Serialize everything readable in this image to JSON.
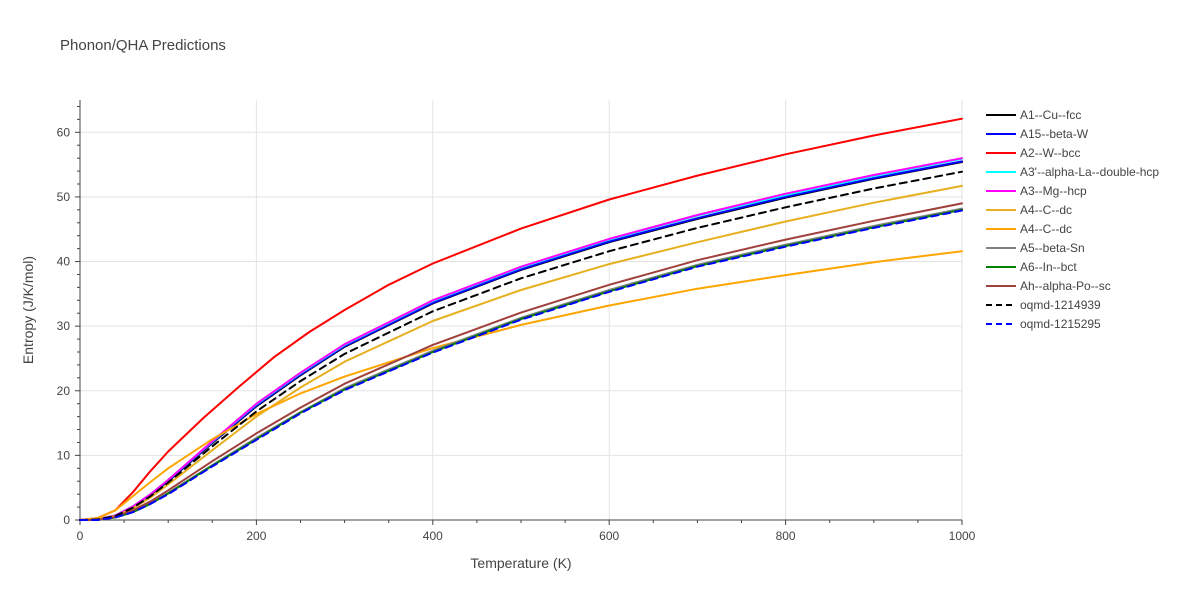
{
  "chart_data": {
    "type": "line",
    "title": "Phonon/QHA Predictions",
    "xlabel": "Temperature (K)",
    "ylabel": "Entropy (J/K/mol)",
    "xlim": [
      0,
      1000
    ],
    "ylim": [
      0,
      65
    ],
    "x_ticks": [
      0,
      200,
      400,
      600,
      800,
      1000
    ],
    "y_ticks": [
      0,
      10,
      20,
      30,
      40,
      50,
      60
    ],
    "grid": true,
    "legend_position": "right",
    "series": [
      {
        "name": "A1--Cu--fcc",
        "color": "#000000",
        "dash": "solid",
        "x": [
          0,
          20,
          40,
          60,
          80,
          100,
          150,
          200,
          250,
          300,
          400,
          500,
          600,
          700,
          800,
          900,
          1000
        ],
        "y": [
          0,
          0.1,
          0.7,
          2.0,
          3.9,
          6.0,
          11.9,
          17.6,
          22.4,
          26.8,
          33.5,
          38.7,
          43.0,
          46.6,
          49.9,
          52.8,
          55.4
        ]
      },
      {
        "name": "A15--beta-W",
        "color": "#0000ff",
        "dash": "solid",
        "x": [
          0,
          20,
          40,
          60,
          80,
          100,
          150,
          200,
          250,
          300,
          400,
          500,
          600,
          700,
          800,
          900,
          1000
        ],
        "y": [
          0,
          0.1,
          0.7,
          2.1,
          4.0,
          6.1,
          12.0,
          17.7,
          22.5,
          26.9,
          33.6,
          38.8,
          43.1,
          46.7,
          50.0,
          52.9,
          55.5
        ]
      },
      {
        "name": "A2--W--bcc",
        "color": "#ff0000",
        "dash": "solid",
        "x": [
          0,
          20,
          40,
          60,
          80,
          100,
          140,
          180,
          220,
          260,
          300,
          350,
          400,
          500,
          600,
          700,
          800,
          900,
          1000
        ],
        "y": [
          0,
          0.3,
          1.5,
          4.3,
          7.6,
          10.6,
          15.8,
          20.6,
          25.2,
          29.1,
          32.5,
          36.4,
          39.7,
          45.1,
          49.6,
          53.3,
          56.6,
          59.5,
          62.1
        ]
      },
      {
        "name": "A3'--alpha-La--double-hcp",
        "color": "#00ffff",
        "dash": "solid",
        "x": [
          0,
          20,
          40,
          60,
          80,
          100,
          150,
          200,
          250,
          300,
          400,
          500,
          600,
          700,
          800,
          900,
          1000
        ],
        "y": [
          0,
          0.1,
          0.7,
          2.1,
          4.0,
          6.2,
          12.1,
          17.9,
          22.7,
          27.1,
          33.9,
          39.1,
          43.4,
          47.1,
          50.3,
          53.2,
          55.9
        ]
      },
      {
        "name": "A3--Mg--hcp",
        "color": "#ff00ff",
        "dash": "solid",
        "x": [
          0,
          20,
          40,
          60,
          80,
          100,
          150,
          200,
          250,
          300,
          400,
          500,
          600,
          700,
          800,
          900,
          1000
        ],
        "y": [
          0,
          0.1,
          0.7,
          2.1,
          4.0,
          6.2,
          12.2,
          18.0,
          22.8,
          27.2,
          34.0,
          39.2,
          43.5,
          47.2,
          50.5,
          53.4,
          56.0
        ]
      },
      {
        "name": "A4--C--dc",
        "color": "#e6b020",
        "dash": "solid",
        "x": [
          0,
          20,
          40,
          60,
          80,
          100,
          150,
          200,
          250,
          300,
          400,
          500,
          600,
          700,
          800,
          900,
          1000
        ],
        "y": [
          0,
          0.1,
          0.6,
          1.8,
          3.5,
          5.5,
          10.8,
          16.0,
          20.5,
          24.5,
          30.8,
          35.6,
          39.6,
          43.0,
          46.2,
          49.1,
          51.7
        ]
      },
      {
        "name": "A4--C--dc",
        "color": "#ffa500",
        "dash": "solid",
        "x": [
          0,
          20,
          40,
          60,
          80,
          100,
          150,
          200,
          250,
          300,
          400,
          500,
          600,
          700,
          800,
          900,
          1000
        ],
        "y": [
          0,
          0.3,
          1.5,
          3.7,
          5.9,
          8.0,
          12.5,
          16.4,
          19.6,
          22.2,
          26.6,
          30.2,
          33.2,
          35.8,
          37.9,
          39.9,
          41.6
        ]
      },
      {
        "name": "A5--beta-Sn",
        "color": "#808080",
        "dash": "solid",
        "x": [
          0,
          20,
          40,
          60,
          80,
          100,
          150,
          200,
          250,
          300,
          400,
          500,
          600,
          700,
          800,
          900,
          1000
        ],
        "y": [
          0,
          0.0,
          0.4,
          1.3,
          2.6,
          4.2,
          8.5,
          12.7,
          16.7,
          20.4,
          26.2,
          31.3,
          35.6,
          39.5,
          42.6,
          45.5,
          48.2
        ]
      },
      {
        "name": "A6--In--bct",
        "color": "#008000",
        "dash": "solid",
        "x": [
          0,
          20,
          40,
          60,
          80,
          100,
          150,
          200,
          250,
          300,
          400,
          500,
          600,
          700,
          800,
          900,
          1000
        ],
        "y": [
          0,
          0.0,
          0.4,
          1.2,
          2.5,
          4.1,
          8.4,
          12.5,
          16.6,
          20.2,
          26.0,
          31.1,
          35.4,
          39.3,
          42.4,
          45.3,
          48.0
        ]
      },
      {
        "name": "Ah--alpha-Po--sc",
        "color": "#a0403c",
        "dash": "solid",
        "x": [
          0,
          20,
          40,
          60,
          80,
          100,
          150,
          200,
          250,
          300,
          400,
          500,
          600,
          700,
          800,
          900,
          1000
        ],
        "y": [
          0,
          0.0,
          0.5,
          1.5,
          2.9,
          4.6,
          9.1,
          13.4,
          17.4,
          21.1,
          27.1,
          32.1,
          36.4,
          40.2,
          43.4,
          46.3,
          49.0
        ]
      },
      {
        "name": "oqmd-1214939",
        "color": "#000000",
        "dash": "dash",
        "x": [
          0,
          20,
          40,
          60,
          80,
          100,
          150,
          200,
          250,
          300,
          400,
          500,
          600,
          700,
          800,
          900,
          1000
        ],
        "y": [
          0,
          0.1,
          0.6,
          1.9,
          3.7,
          5.8,
          11.4,
          16.8,
          21.5,
          25.7,
          32.3,
          37.4,
          41.6,
          45.2,
          48.4,
          51.3,
          53.9
        ]
      },
      {
        "name": "oqmd-1215295",
        "color": "#0000ff",
        "dash": "dash",
        "x": [
          0,
          20,
          40,
          60,
          80,
          100,
          150,
          200,
          250,
          300,
          400,
          500,
          600,
          700,
          800,
          900,
          1000
        ],
        "y": [
          0,
          0.0,
          0.4,
          1.2,
          2.5,
          4.0,
          8.3,
          12.4,
          16.5,
          20.1,
          25.9,
          31.0,
          35.3,
          39.2,
          42.3,
          45.2,
          47.9
        ]
      }
    ]
  }
}
